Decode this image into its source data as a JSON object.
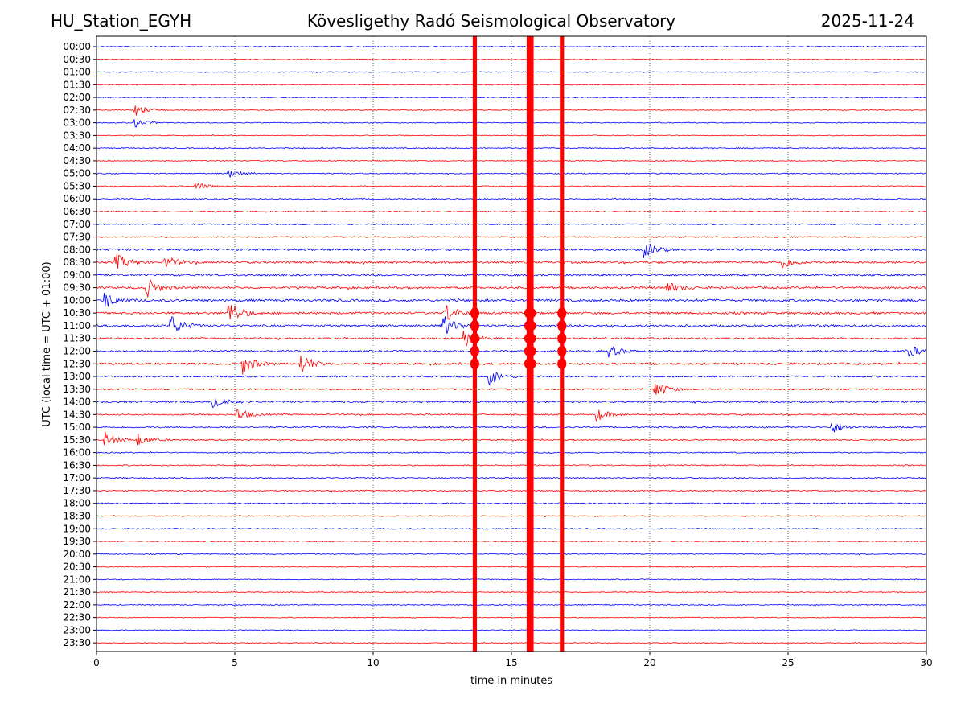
{
  "header": {
    "station": "HU_Station_EGYH",
    "observatory": "Kövesligethy Radó Seismological Observatory",
    "date": "2025-11-24"
  },
  "chart_data": {
    "type": "line",
    "title": "Kövesligethy Radó Seismological Observatory",
    "xlabel": "time in minutes",
    "ylabel": "UTC (local time = UTC + 01:00)",
    "xlim": [
      0,
      30
    ],
    "xticks": [
      0,
      5,
      10,
      15,
      20,
      25,
      30
    ],
    "grid": "vertical dotted at x ticks",
    "rows": [
      "00:00",
      "00:30",
      "01:00",
      "01:30",
      "02:00",
      "02:30",
      "03:00",
      "03:30",
      "04:00",
      "04:30",
      "05:00",
      "05:30",
      "06:00",
      "06:30",
      "07:00",
      "07:30",
      "08:00",
      "08:30",
      "09:00",
      "09:30",
      "10:00",
      "10:30",
      "11:00",
      "11:30",
      "12:00",
      "12:30",
      "13:00",
      "13:30",
      "14:00",
      "14:30",
      "15:00",
      "15:30",
      "16:00",
      "16:30",
      "17:00",
      "17:30",
      "18:00",
      "18:30",
      "19:00",
      "19:30",
      "20:00",
      "20:30",
      "21:00",
      "21:30",
      "22:00",
      "22:30",
      "23:00",
      "23:30"
    ],
    "series_colors": [
      "#0000ff",
      "#ff0000"
    ],
    "noise_level": [
      0.22,
      0.2,
      0.22,
      0.2,
      0.22,
      0.2,
      0.22,
      0.2,
      0.24,
      0.22,
      0.25,
      0.24,
      0.28,
      0.26,
      0.28,
      0.3,
      0.5,
      0.5,
      0.45,
      0.48,
      0.55,
      0.5,
      0.5,
      0.4,
      0.42,
      0.45,
      0.38,
      0.35,
      0.42,
      0.32,
      0.32,
      0.3,
      0.26,
      0.28,
      0.28,
      0.26,
      0.28,
      0.24,
      0.26,
      0.22,
      0.22,
      0.2,
      0.22,
      0.2,
      0.22,
      0.2,
      0.22,
      0.2
    ],
    "events": [
      {
        "row": 5,
        "minute": 1.4,
        "amplitude": 3
      },
      {
        "row": 6,
        "minute": 1.4,
        "amplitude": 2
      },
      {
        "row": 10,
        "minute": 4.8,
        "amplitude": 2
      },
      {
        "row": 11,
        "minute": 3.6,
        "amplitude": 2
      },
      {
        "row": 16,
        "minute": 19.8,
        "amplitude": 4
      },
      {
        "row": 17,
        "minute": 0.7,
        "amplitude": 4
      },
      {
        "row": 17,
        "minute": 2.5,
        "amplitude": 3
      },
      {
        "row": 17,
        "minute": 24.8,
        "amplitude": 3
      },
      {
        "row": 19,
        "minute": 1.8,
        "amplitude": 5
      },
      {
        "row": 19,
        "minute": 20.6,
        "amplitude": 3
      },
      {
        "row": 20,
        "minute": 0.3,
        "amplitude": 4
      },
      {
        "row": 21,
        "minute": 4.8,
        "amplitude": 6
      },
      {
        "row": 21,
        "minute": 12.6,
        "amplitude": 5
      },
      {
        "row": 22,
        "minute": 2.7,
        "amplitude": 5
      },
      {
        "row": 22,
        "minute": 12.5,
        "amplitude": 6
      },
      {
        "row": 23,
        "minute": 13.3,
        "amplitude": 4
      },
      {
        "row": 24,
        "minute": 18.5,
        "amplitude": 3
      },
      {
        "row": 24,
        "minute": 29.4,
        "amplitude": 3
      },
      {
        "row": 25,
        "minute": 5.3,
        "amplitude": 5
      },
      {
        "row": 25,
        "minute": 7.4,
        "amplitude": 5
      },
      {
        "row": 26,
        "minute": 14.2,
        "amplitude": 4
      },
      {
        "row": 27,
        "minute": 20.2,
        "amplitude": 4
      },
      {
        "row": 28,
        "minute": 4.2,
        "amplitude": 4
      },
      {
        "row": 29,
        "minute": 5.1,
        "amplitude": 3
      },
      {
        "row": 29,
        "minute": 18.1,
        "amplitude": 3
      },
      {
        "row": 30,
        "minute": 26.6,
        "amplitude": 3
      },
      {
        "row": 31,
        "minute": 0.3,
        "amplitude": 4
      },
      {
        "row": 31,
        "minute": 1.5,
        "amplitude": 3
      }
    ],
    "saturated_bands": [
      {
        "minute_start": 13.6,
        "minute_end": 13.75
      },
      {
        "minute_start": 15.55,
        "minute_end": 15.8
      },
      {
        "minute_start": 16.75,
        "minute_end": 16.9
      }
    ]
  }
}
